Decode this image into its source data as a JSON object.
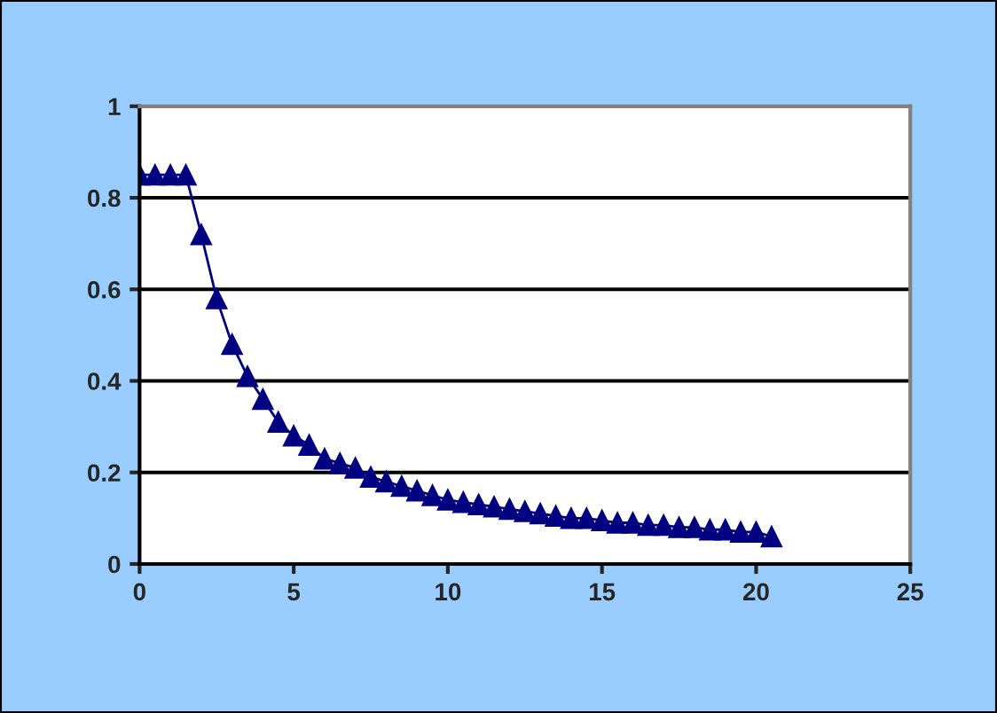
{
  "chart_data": {
    "type": "line",
    "marker": "triangle",
    "grid": "y",
    "x": [
      0,
      0.5,
      1,
      1.5,
      2,
      2.5,
      3,
      3.5,
      4,
      4.5,
      5,
      5.5,
      6,
      6.5,
      7,
      7.5,
      8,
      8.5,
      9,
      9.5,
      10,
      10.5,
      11,
      11.5,
      12,
      12.5,
      13,
      13.5,
      14,
      14.5,
      15,
      15.5,
      16,
      16.5,
      17,
      17.5,
      18,
      18.5,
      19,
      19.5,
      20,
      20.5
    ],
    "series": [
      {
        "color": "#000080",
        "values": [
          0.85,
          0.85,
          0.85,
          0.85,
          0.72,
          0.58,
          0.48,
          0.41,
          0.36,
          0.31,
          0.28,
          0.26,
          0.23,
          0.22,
          0.21,
          0.19,
          0.18,
          0.17,
          0.16,
          0.15,
          0.14,
          0.135,
          0.13,
          0.125,
          0.12,
          0.115,
          0.11,
          0.105,
          0.1,
          0.1,
          0.095,
          0.09,
          0.09,
          0.085,
          0.085,
          0.08,
          0.08,
          0.075,
          0.075,
          0.07,
          0.07,
          0.06
        ]
      }
    ],
    "xlim": [
      0,
      25
    ],
    "xticks": [
      0,
      5,
      10,
      15,
      20,
      25
    ],
    "ylim": [
      0,
      1
    ],
    "yticks": [
      0,
      0.2,
      0.4,
      0.6,
      0.8,
      1
    ]
  }
}
